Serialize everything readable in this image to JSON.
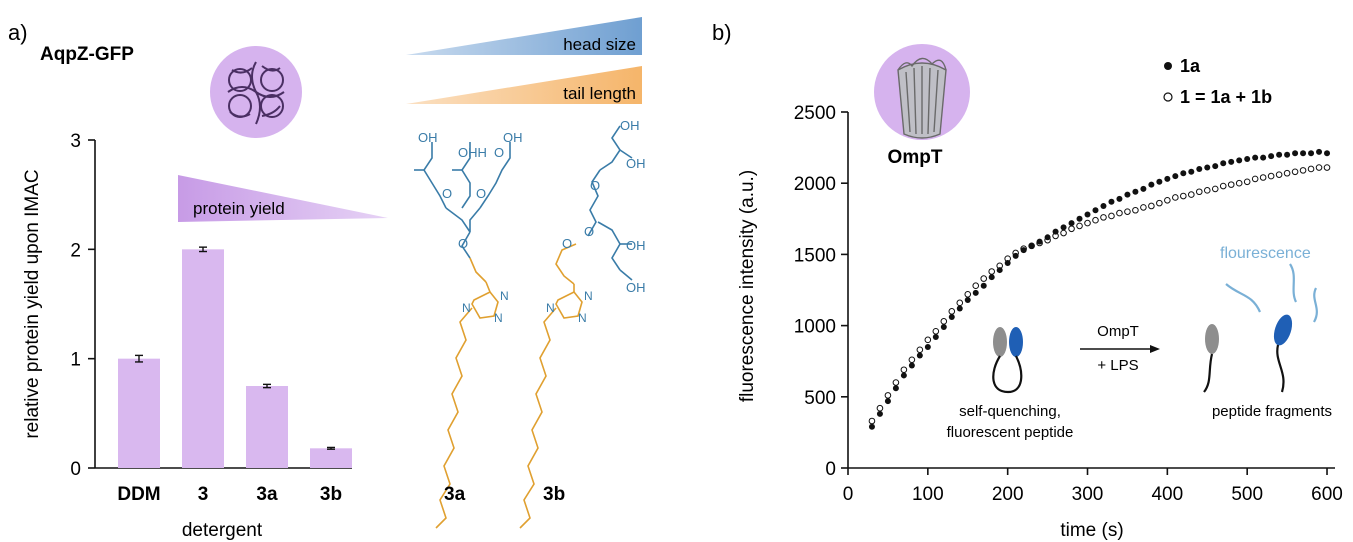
{
  "panel_a": {
    "label": "a)",
    "protein_name": "AqpZ-GFP",
    "gradient_protein_yield": "protein yield",
    "gradient_head_size": "head size",
    "gradient_tail_length": "tail length",
    "structure_labels": [
      "3a",
      "3b"
    ]
  },
  "panel_b": {
    "label": "b)",
    "protein_name": "OmpT",
    "scheme": {
      "reagent_top": "OmpT",
      "reagent_bottom": "+ LPS",
      "left_caption_1": "self-quenching,",
      "left_caption_2": "fluorescent peptide",
      "right_caption": "peptide fragments",
      "fluorescence_label": "flourescence"
    }
  },
  "colors": {
    "bar": "#d9b8ef",
    "circle": "#d6b3ee",
    "head_blue": "#3a7ca8",
    "tail_orange": "#e0a030",
    "head_grad": "#6f9fd1",
    "tail_grad": "#f5b56a",
    "fluor_line": "#7ab0d6"
  },
  "chart_data": [
    {
      "type": "bar",
      "categories": [
        "DDM",
        "3",
        "3a",
        "3b"
      ],
      "values": [
        1.0,
        2.0,
        0.75,
        0.18
      ],
      "errors": [
        0.03,
        0.02,
        0.015,
        0.008
      ],
      "xlabel": "detergent",
      "ylabel": "relative protein yield upon IMAC",
      "ylim": [
        0,
        3
      ],
      "yticks": [
        0,
        1,
        2,
        3
      ]
    },
    {
      "type": "scatter",
      "xlabel": "time (s)",
      "ylabel": "fluorescence intensity (a.u.)",
      "xlim": [
        0,
        610
      ],
      "ylim": [
        0,
        2500
      ],
      "xticks": [
        0,
        100,
        200,
        300,
        400,
        500,
        600
      ],
      "yticks": [
        0,
        500,
        1000,
        1500,
        2000,
        2500
      ],
      "legend": "top-right",
      "series": [
        {
          "name": "1a",
          "marker": "filled",
          "x": [
            30,
            40,
            50,
            60,
            70,
            80,
            90,
            100,
            110,
            120,
            130,
            140,
            150,
            160,
            170,
            180,
            190,
            200,
            210,
            220,
            230,
            240,
            250,
            260,
            270,
            280,
            290,
            300,
            310,
            320,
            330,
            340,
            350,
            360,
            370,
            380,
            390,
            400,
            410,
            420,
            430,
            440,
            450,
            460,
            470,
            480,
            490,
            500,
            510,
            520,
            530,
            540,
            550,
            560,
            570,
            580,
            590,
            600
          ],
          "y": [
            290,
            380,
            470,
            560,
            650,
            720,
            790,
            850,
            920,
            990,
            1060,
            1120,
            1180,
            1230,
            1280,
            1340,
            1390,
            1440,
            1490,
            1530,
            1560,
            1590,
            1620,
            1660,
            1690,
            1720,
            1750,
            1780,
            1810,
            1840,
            1870,
            1890,
            1920,
            1940,
            1960,
            1990,
            2010,
            2030,
            2050,
            2070,
            2080,
            2100,
            2110,
            2120,
            2140,
            2150,
            2160,
            2170,
            2180,
            2180,
            2190,
            2200,
            2200,
            2210,
            2210,
            2210,
            2220,
            2210
          ]
        },
        {
          "name": "1 = 1a + 1b",
          "marker": "open",
          "x": [
            30,
            40,
            50,
            60,
            70,
            80,
            90,
            100,
            110,
            120,
            130,
            140,
            150,
            160,
            170,
            180,
            190,
            200,
            210,
            220,
            230,
            240,
            250,
            260,
            270,
            280,
            290,
            300,
            310,
            320,
            330,
            340,
            350,
            360,
            370,
            380,
            390,
            400,
            410,
            420,
            430,
            440,
            450,
            460,
            470,
            480,
            490,
            500,
            510,
            520,
            530,
            540,
            550,
            560,
            570,
            580,
            590,
            600
          ],
          "y": [
            330,
            420,
            510,
            600,
            690,
            760,
            830,
            900,
            960,
            1030,
            1100,
            1160,
            1220,
            1280,
            1330,
            1380,
            1420,
            1470,
            1510,
            1540,
            1560,
            1580,
            1600,
            1630,
            1650,
            1680,
            1700,
            1720,
            1740,
            1760,
            1770,
            1790,
            1800,
            1810,
            1830,
            1840,
            1860,
            1880,
            1900,
            1910,
            1920,
            1940,
            1950,
            1960,
            1980,
            1990,
            2000,
            2010,
            2030,
            2040,
            2050,
            2060,
            2070,
            2080,
            2090,
            2100,
            2110,
            2110
          ]
        }
      ]
    }
  ]
}
